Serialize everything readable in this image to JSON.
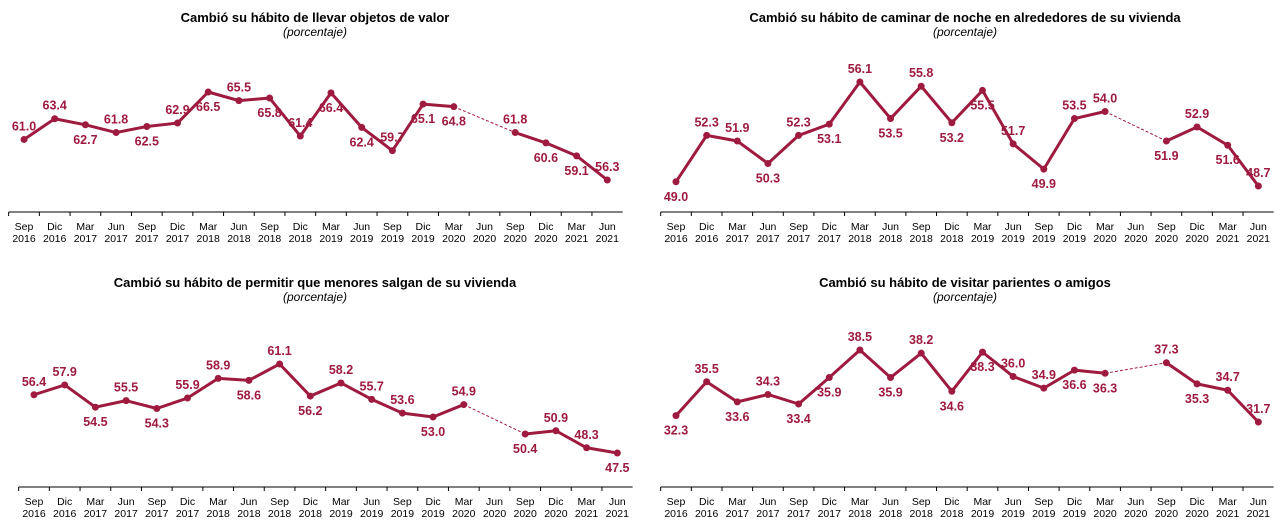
{
  "chart_data": [
    {
      "type": "line",
      "title": "Cambió su hábito de llevar objetos de valor",
      "subtitle": "(porcentaje)",
      "color": "#9e1b3f",
      "categories": [
        "Sep 2016",
        "Dic 2016",
        "Mar 2017",
        "Jun 2017",
        "Sep 2017",
        "Dic 2017",
        "Mar 2018",
        "Jun 2018",
        "Sep 2018",
        "Dic 2018",
        "Mar 2019",
        "Jun 2019",
        "Sep 2019",
        "Dic 2019",
        "Mar 2020",
        "Jun 2020",
        "Sep 2020",
        "Dic 2020",
        "Mar 2021",
        "Jun 2021"
      ],
      "values": [
        61.0,
        63.4,
        62.7,
        61.8,
        62.5,
        62.9,
        66.5,
        65.5,
        65.8,
        61.4,
        66.4,
        62.4,
        59.7,
        65.1,
        64.8,
        null,
        61.8,
        60.6,
        59.1,
        56.3
      ],
      "value_labels": [
        "61.0",
        "63.4",
        "62.7",
        "61.8",
        "62.5",
        "62.9",
        "66.5",
        "65.5",
        "65.8",
        "61.4",
        "66.4",
        "62.4",
        "59.7",
        "65.1",
        "64.8",
        null,
        "61.8",
        "60.6",
        "59.1",
        "56.3"
      ]
    },
    {
      "type": "line",
      "title": "Cambió su hábito de caminar de noche en alrededores de su vivienda",
      "subtitle": "(porcentaje)",
      "color": "#9e1b3f",
      "categories": [
        "Sep 2016",
        "Dic 2016",
        "Mar 2017",
        "Jun 2017",
        "Sep 2017",
        "Dic 2017",
        "Mar 2018",
        "Jun 2018",
        "Sep 2018",
        "Dic 2018",
        "Mar 2019",
        "Jun 2019",
        "Sep 2019",
        "Dic 2019",
        "Mar 2020",
        "Jun 2020",
        "Sep 2020",
        "Dic 2020",
        "Mar 2021",
        "Jun 2021"
      ],
      "values": [
        49.0,
        52.3,
        51.9,
        50.3,
        52.3,
        53.1,
        56.1,
        53.5,
        55.8,
        53.2,
        55.5,
        51.7,
        49.9,
        53.5,
        54.0,
        null,
        51.9,
        52.9,
        51.6,
        48.7
      ],
      "value_labels": [
        "49.0",
        "52.3",
        "51.9",
        "50.3",
        "52.3",
        "53.1",
        "56.1",
        "53.5",
        "55.8",
        "53.2",
        "55.5",
        "51.7",
        "49.9",
        "53.5",
        "54.0",
        null,
        "51.9",
        "52.9",
        "51.6",
        "48.7"
      ]
    },
    {
      "type": "line",
      "title": "Cambió su hábito de permitir que menores salgan de su vivienda",
      "subtitle": "(porcentaje)",
      "color": "#9e1b3f",
      "categories": [
        "Sep 2016",
        "Dic 2016",
        "Mar 2017",
        "Jun 2017",
        "Sep 2017",
        "Dic 2017",
        "Mar 2018",
        "Jun 2018",
        "Sep 2018",
        "Dic 2018",
        "Mar 2019",
        "Jun 2019",
        "Sep 2019",
        "Dic 2019",
        "Mar 2020",
        "Jun 2020",
        "Sep 2020",
        "Dic 2020",
        "Mar 2021",
        "Jun 2021"
      ],
      "values": [
        56.4,
        57.9,
        54.5,
        55.5,
        54.3,
        55.9,
        58.9,
        58.6,
        61.1,
        56.2,
        58.2,
        55.7,
        53.6,
        53.0,
        54.9,
        null,
        50.4,
        50.9,
        48.3,
        47.5
      ],
      "value_labels": [
        "56.4",
        "57.9",
        "54.5",
        "55.5",
        "54.3",
        "55.9",
        "58.9",
        "58.6",
        "61.1",
        "56.2",
        "58.2",
        "55.7",
        "53.6",
        "53.0",
        "54.9",
        null,
        "50.4",
        "50.9",
        "48.3",
        "47.5"
      ]
    },
    {
      "type": "line",
      "title": "Cambió su hábito de visitar parientes o amigos",
      "subtitle": "(porcentaje)",
      "color": "#9e1b3f",
      "categories": [
        "Sep 2016",
        "Dic 2016",
        "Mar 2017",
        "Jun 2017",
        "Sep 2017",
        "Dic 2017",
        "Mar 2018",
        "Jun 2018",
        "Sep 2018",
        "Dic 2018",
        "Mar 2019",
        "Jun 2019",
        "Sep 2019",
        "Dic 2019",
        "Mar 2020",
        "Jun 2020",
        "Sep 2020",
        "Dic 2020",
        "Mar 2021",
        "Jun 2021"
      ],
      "values": [
        32.3,
        35.5,
        33.6,
        34.3,
        33.4,
        35.9,
        38.5,
        35.9,
        38.2,
        34.6,
        38.3,
        36.0,
        34.9,
        36.6,
        36.3,
        null,
        37.3,
        35.3,
        34.7,
        31.7
      ],
      "value_labels": [
        "32.3",
        "35.5",
        "33.6",
        "34.3",
        "33.4",
        "35.9",
        "38.5",
        "35.9",
        "38.2",
        "34.6",
        "38.3",
        "36.0",
        "34.9",
        "36.6",
        "36.3",
        null,
        "37.3",
        "35.3",
        "34.7",
        "31.7"
      ]
    }
  ]
}
